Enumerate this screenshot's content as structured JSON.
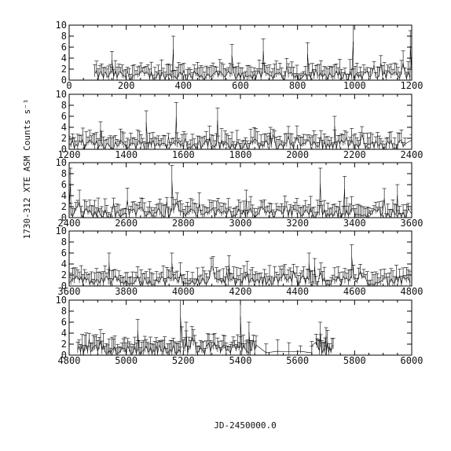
{
  "chart_data": {
    "type": "line",
    "ylabel": "1730-312 XTE ASM Counts s⁻¹",
    "xlabel": "JD-2450000.0",
    "y_ticks": [
      "0",
      "2",
      "4",
      "6",
      "8",
      "10"
    ],
    "ylim": [
      0,
      10
    ],
    "grid": false,
    "legend": "none",
    "panels": [
      {
        "xlim": [
          0,
          1200
        ],
        "x_ticks": [
          "0",
          "200",
          "400",
          "600",
          "800",
          "1000",
          "1200"
        ]
      },
      {
        "xlim": [
          1200,
          2400
        ],
        "x_ticks": [
          "1200",
          "1400",
          "1600",
          "1800",
          "2000",
          "2200",
          "2400"
        ]
      },
      {
        "xlim": [
          2400,
          3600
        ],
        "x_ticks": [
          "2400",
          "2600",
          "2800",
          "3000",
          "3200",
          "3400",
          "3600"
        ]
      },
      {
        "xlim": [
          3600,
          4800
        ],
        "x_ticks": [
          "3600",
          "3800",
          "4000",
          "4200",
          "4400",
          "4600",
          "4800"
        ]
      },
      {
        "xlim": [
          4800,
          6000
        ],
        "x_ticks": [
          "4800",
          "5000",
          "5200",
          "5400",
          "5600",
          "5800",
          "6000"
        ]
      }
    ],
    "segments": [
      {
        "x_start": 90,
        "x_end": 1195,
        "step": 6,
        "base": 0.9,
        "noise": 1.0,
        "spikes": [
          {
            "x": 150,
            "y": 5.2
          },
          {
            "x": 365,
            "y": 8.0
          },
          {
            "x": 570,
            "y": 6.5
          },
          {
            "x": 680,
            "y": 7.5
          },
          {
            "x": 835,
            "y": 6.8
          },
          {
            "x": 995,
            "y": 10.0
          },
          {
            "x": 1195,
            "y": 9.0
          }
        ]
      },
      {
        "x_start": 1200,
        "x_end": 2380,
        "step": 6,
        "base": 0.9,
        "noise": 1.0,
        "spikes": [
          {
            "x": 1310,
            "y": 5.0
          },
          {
            "x": 1470,
            "y": 7.0
          },
          {
            "x": 1575,
            "y": 8.5
          },
          {
            "x": 1720,
            "y": 7.5
          },
          {
            "x": 1905,
            "y": 4.0
          },
          {
            "x": 2130,
            "y": 6.0
          }
        ]
      },
      {
        "x_start": 2400,
        "x_end": 3590,
        "step": 6,
        "base": 0.9,
        "noise": 1.0,
        "spikes": [
          {
            "x": 2405,
            "y": 9.0
          },
          {
            "x": 2760,
            "y": 9.5
          },
          {
            "x": 3020,
            "y": 5.0
          },
          {
            "x": 3280,
            "y": 9.0
          },
          {
            "x": 3365,
            "y": 7.5
          },
          {
            "x": 3550,
            "y": 6.0
          }
        ]
      },
      {
        "x_start": 3600,
        "x_end": 4795,
        "step": 6,
        "base": 1.0,
        "noise": 1.0,
        "spikes": [
          {
            "x": 3740,
            "y": 6.0
          },
          {
            "x": 3960,
            "y": 6.0
          },
          {
            "x": 4160,
            "y": 5.5
          },
          {
            "x": 4440,
            "y": 6.0
          },
          {
            "x": 4460,
            "y": 5.0
          },
          {
            "x": 4590,
            "y": 7.5
          }
        ]
      },
      {
        "x_start": 4830,
        "x_end": 5455,
        "step": 5,
        "base": 1.0,
        "noise": 1.0,
        "spikes": [
          {
            "x": 5040,
            "y": 6.5
          },
          {
            "x": 5190,
            "y": 10.0
          },
          {
            "x": 5210,
            "y": 6.0
          },
          {
            "x": 5400,
            "y": 10.0
          },
          {
            "x": 5430,
            "y": 6.0
          }
        ]
      },
      {
        "x_start": 5490,
        "x_end": 5660,
        "step": 40,
        "base": 0.6,
        "noise": 0.3,
        "spikes": [
          {
            "x": 5650,
            "y": 2.5
          }
        ]
      },
      {
        "x_start": 5665,
        "x_end": 5725,
        "step": 4,
        "base": 1.5,
        "noise": 1.2,
        "spikes": [
          {
            "x": 5680,
            "y": 6.0
          },
          {
            "x": 5700,
            "y": 5.0
          }
        ]
      }
    ]
  }
}
